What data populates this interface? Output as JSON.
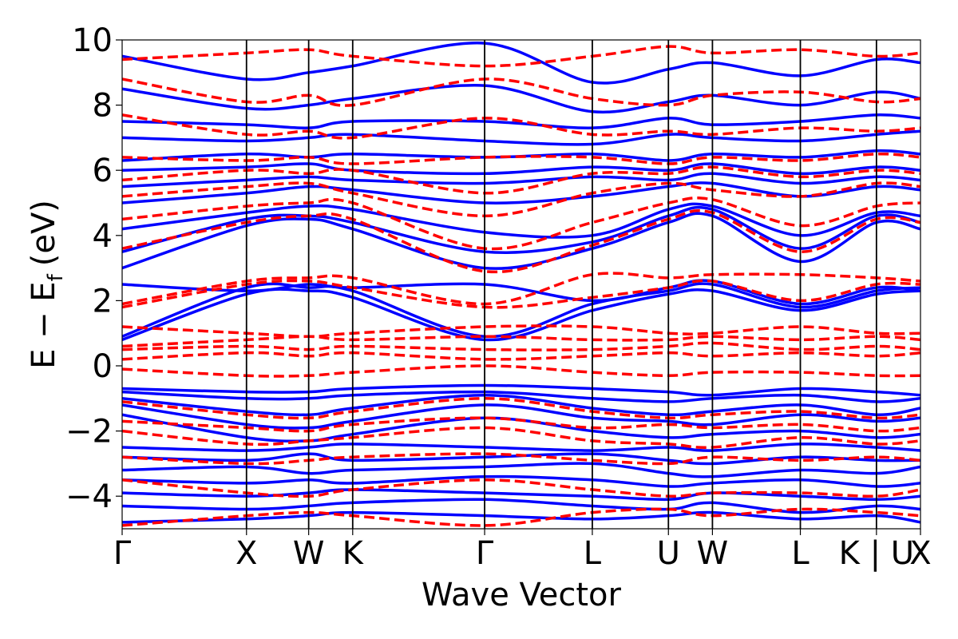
{
  "chart_data": {
    "type": "line",
    "xlabel": "Wave Vector",
    "ylabel_main": "E − E",
    "ylabel_sub": "f",
    "ylabel_unit": "(eV)",
    "ylim": [
      -5,
      10
    ],
    "yticks": [
      -4,
      -2,
      0,
      2,
      4,
      6,
      8,
      10
    ],
    "kpoints": [
      {
        "label": "Γ",
        "x": 0
      },
      {
        "label": "X",
        "x": 1.0
      },
      {
        "label": "W",
        "x": 1.5
      },
      {
        "label": "K",
        "x": 1.854
      },
      {
        "label": "Γ",
        "x": 2.915
      },
      {
        "label": "L",
        "x": 3.781
      },
      {
        "label": "U",
        "x": 4.393
      },
      {
        "label": "W",
        "x": 4.747
      },
      {
        "label": "L",
        "x": 5.454
      },
      {
        "label": "K | U",
        "x": 6.066
      },
      {
        "label": "X",
        "x": 6.42
      }
    ],
    "series": [
      {
        "style": "solid",
        "color": "#0000ff",
        "bands": [
          [
            -4.8,
            -4.7,
            -4.6,
            -4.5,
            -4.6,
            -4.7,
            -4.6,
            -4.5,
            -4.7,
            -4.6,
            -4.8
          ],
          [
            -4.3,
            -4.4,
            -4.3,
            -4.2,
            -4.1,
            -4.3,
            -4.4,
            -4.2,
            -4.5,
            -4.3,
            -4.4
          ],
          [
            -3.9,
            -4.0,
            -3.9,
            -3.8,
            -3.9,
            -4.0,
            -4.1,
            -3.9,
            -4.0,
            -4.1,
            -4.0
          ],
          [
            -3.5,
            -3.6,
            -3.5,
            -3.6,
            -3.4,
            -3.5,
            -3.7,
            -3.6,
            -3.5,
            -3.7,
            -3.6
          ],
          [
            -3.2,
            -3.1,
            -3.3,
            -3.2,
            -3.1,
            -3.0,
            -3.3,
            -3.4,
            -3.2,
            -3.3,
            -3.1
          ],
          [
            -2.8,
            -2.9,
            -2.7,
            -2.9,
            -2.8,
            -2.7,
            -2.9,
            -3.0,
            -2.8,
            -2.9,
            -2.9
          ],
          [
            -2.5,
            -2.6,
            -2.5,
            -2.4,
            -2.5,
            -2.6,
            -2.5,
            -2.6,
            -2.4,
            -2.5,
            -2.6
          ],
          [
            -1.5,
            -2.2,
            -2.3,
            -2.1,
            -1.6,
            -2.0,
            -2.2,
            -2.1,
            -2.0,
            -2.2,
            -2.1
          ],
          [
            -1.2,
            -1.8,
            -1.9,
            -1.7,
            -1.2,
            -1.6,
            -1.7,
            -1.8,
            -1.5,
            -1.7,
            -1.6
          ],
          [
            -1.0,
            -1.4,
            -1.5,
            -1.3,
            -0.9,
            -1.3,
            -1.5,
            -1.4,
            -1.2,
            -1.5,
            -1.3
          ],
          [
            -0.8,
            -1.0,
            -1.0,
            -0.9,
            -0.8,
            -1.0,
            -1.1,
            -1.0,
            -0.9,
            -1.1,
            -1.0
          ],
          [
            -0.7,
            -0.8,
            -0.8,
            -0.7,
            -0.6,
            -0.7,
            -0.8,
            -0.9,
            -0.7,
            -0.8,
            -0.9
          ],
          [
            0.8,
            2.2,
            2.3,
            2.1,
            0.8,
            1.7,
            2.2,
            2.3,
            1.7,
            2.2,
            2.3
          ],
          [
            0.9,
            2.4,
            2.4,
            2.3,
            0.9,
            1.9,
            2.3,
            2.5,
            1.8,
            2.3,
            2.4
          ],
          [
            2.5,
            2.3,
            2.5,
            2.4,
            2.5,
            2.0,
            2.4,
            2.6,
            1.9,
            2.4,
            2.3
          ],
          [
            3.0,
            4.3,
            4.5,
            4.2,
            3.0,
            3.6,
            4.4,
            4.6,
            3.2,
            4.4,
            4.2
          ],
          [
            3.5,
            4.5,
            4.6,
            4.4,
            3.5,
            3.8,
            4.6,
            4.8,
            3.6,
            4.6,
            4.4
          ],
          [
            4.2,
            4.7,
            4.9,
            4.8,
            4.1,
            4.0,
            4.8,
            4.9,
            4.0,
            4.7,
            4.6
          ],
          [
            5.0,
            5.3,
            5.5,
            5.4,
            5.0,
            5.2,
            5.5,
            5.6,
            5.2,
            5.5,
            5.4
          ],
          [
            5.5,
            5.7,
            5.8,
            5.7,
            5.6,
            5.8,
            5.7,
            5.9,
            5.6,
            5.8,
            5.7
          ],
          [
            6.0,
            6.1,
            6.2,
            6.0,
            5.9,
            6.1,
            6.0,
            6.2,
            5.9,
            6.1,
            6.0
          ],
          [
            6.3,
            6.5,
            6.4,
            6.5,
            6.4,
            6.5,
            6.3,
            6.5,
            6.4,
            6.6,
            6.5
          ],
          [
            7.0,
            6.9,
            7.0,
            7.1,
            6.9,
            6.8,
            7.1,
            7.0,
            6.9,
            7.1,
            7.2
          ],
          [
            7.5,
            7.4,
            7.3,
            7.5,
            7.5,
            7.3,
            7.6,
            7.4,
            7.5,
            7.7,
            7.6
          ],
          [
            8.5,
            7.9,
            8.0,
            8.2,
            8.6,
            7.8,
            8.1,
            8.3,
            8.0,
            8.4,
            8.2
          ],
          [
            9.5,
            8.8,
            9.0,
            9.2,
            9.9,
            8.7,
            9.1,
            9.3,
            8.9,
            9.4,
            9.3
          ]
        ]
      },
      {
        "style": "dashed",
        "color": "#ff0000",
        "bands": [
          [
            -4.9,
            -4.6,
            -4.5,
            -4.6,
            -4.9,
            -4.5,
            -4.4,
            -4.6,
            -4.4,
            -4.5,
            -4.6
          ],
          [
            -3.5,
            -3.9,
            -4.0,
            -3.8,
            -3.5,
            -3.8,
            -4.0,
            -3.9,
            -3.9,
            -4.0,
            -3.8
          ],
          [
            -2.8,
            -3.0,
            -2.9,
            -2.8,
            -2.7,
            -2.9,
            -3.0,
            -2.8,
            -2.9,
            -2.8,
            -2.9
          ],
          [
            -2.0,
            -2.4,
            -2.3,
            -2.2,
            -1.9,
            -2.3,
            -2.4,
            -2.5,
            -2.2,
            -2.4,
            -2.3
          ],
          [
            -1.7,
            -1.9,
            -2.0,
            -1.8,
            -1.6,
            -1.9,
            -1.8,
            -1.9,
            -1.8,
            -2.0,
            -1.9
          ],
          [
            -1.1,
            -1.5,
            -1.6,
            -1.4,
            -1.0,
            -1.4,
            -1.6,
            -1.5,
            -1.4,
            -1.6,
            -1.5
          ],
          [
            -0.1,
            -0.3,
            -0.3,
            -0.2,
            0.0,
            -0.2,
            -0.3,
            -0.2,
            -0.2,
            -0.3,
            -0.3
          ],
          [
            0.2,
            0.4,
            0.3,
            0.4,
            0.2,
            0.3,
            0.4,
            0.3,
            0.4,
            0.3,
            0.4
          ],
          [
            0.5,
            0.6,
            0.5,
            0.6,
            0.5,
            0.5,
            0.6,
            0.7,
            0.5,
            0.6,
            0.5
          ],
          [
            0.6,
            0.8,
            0.9,
            0.8,
            0.9,
            0.8,
            0.8,
            0.9,
            0.8,
            0.9,
            0.8
          ],
          [
            1.2,
            1.0,
            0.9,
            1.0,
            1.2,
            1.2,
            1.0,
            1.0,
            1.2,
            1.0,
            1.0
          ],
          [
            1.8,
            2.5,
            2.6,
            2.4,
            1.8,
            2.1,
            2.4,
            2.6,
            2.0,
            2.5,
            2.5
          ],
          [
            1.9,
            2.6,
            2.7,
            2.7,
            1.9,
            2.8,
            2.7,
            2.8,
            2.8,
            2.7,
            2.6
          ],
          [
            3.6,
            4.4,
            4.6,
            4.5,
            2.9,
            3.7,
            4.5,
            4.7,
            3.5,
            4.5,
            4.4
          ],
          [
            4.5,
            4.9,
            5.0,
            5.0,
            3.6,
            4.4,
            5.0,
            5.1,
            4.3,
            4.9,
            5.0
          ],
          [
            5.2,
            5.5,
            5.6,
            5.3,
            4.6,
            5.3,
            5.6,
            5.4,
            5.2,
            5.6,
            5.5
          ],
          [
            5.7,
            6.0,
            5.9,
            6.0,
            5.3,
            5.9,
            5.9,
            6.1,
            5.8,
            6.0,
            5.9
          ],
          [
            6.4,
            6.3,
            6.4,
            6.2,
            6.4,
            6.4,
            6.2,
            6.4,
            6.3,
            6.5,
            6.4
          ],
          [
            7.7,
            7.1,
            7.2,
            7.0,
            7.6,
            7.1,
            7.2,
            7.1,
            7.3,
            7.2,
            7.3
          ],
          [
            8.8,
            8.1,
            8.3,
            8.0,
            8.8,
            8.2,
            8.0,
            8.3,
            8.4,
            8.1,
            8.2
          ],
          [
            9.4,
            9.6,
            9.7,
            9.5,
            9.2,
            9.5,
            9.8,
            9.6,
            9.7,
            9.5,
            9.6
          ]
        ]
      }
    ]
  }
}
